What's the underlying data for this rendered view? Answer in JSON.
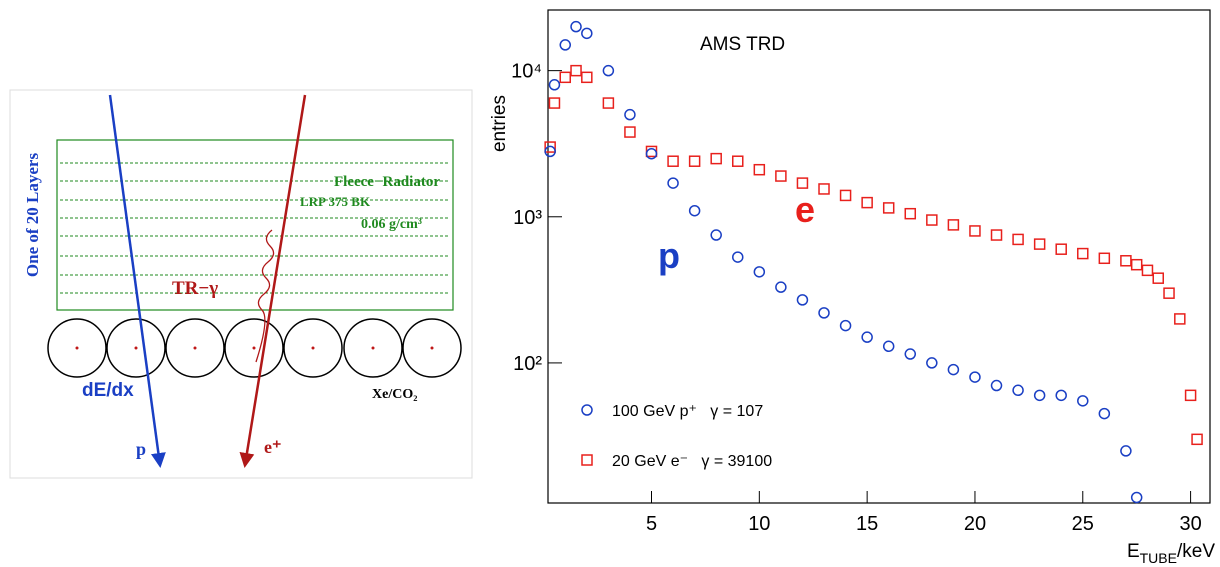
{
  "diagram": {
    "layers_label": "One of 20 Layers",
    "radiator": "Fleece−Radiator",
    "radiator_type": "LRP 375 BK",
    "density": "0.06 g/cm³",
    "tr_photon": "TR−γ",
    "energy_loss": "dE/dx",
    "gas": "Xe/CO₂",
    "proton": "p",
    "positron": "e⁺"
  },
  "chart_data": {
    "type": "scatter",
    "title": "AMS TRD",
    "y_label": "entries",
    "x_label": [
      "E",
      "TUBE",
      "/keV"
    ],
    "annotations": [
      {
        "text": "p",
        "color": "#1a3fc4"
      },
      {
        "text": "e",
        "color": "#e8201c"
      }
    ],
    "log_y": true,
    "xlim": [
      0.2,
      30.9
    ],
    "ylim": [
      11,
      26000
    ],
    "xticks": [
      5,
      10,
      15,
      20,
      25,
      30
    ],
    "yticks": [
      {
        "value": 100,
        "label": "10²"
      },
      {
        "value": 1000,
        "label": "10³"
      },
      {
        "value": 10000,
        "label": "10⁴"
      }
    ],
    "x": [
      0.3,
      0.5,
      1,
      1.5,
      2,
      3,
      4,
      5,
      6,
      7,
      8,
      9,
      10,
      11,
      12,
      13,
      14,
      15,
      16,
      17,
      18,
      19,
      20,
      21,
      22,
      23,
      24,
      25,
      26,
      27,
      27.5,
      28,
      28.5,
      29,
      29.5,
      30,
      30.3
    ],
    "series": [
      {
        "name": "100 GeV p⁺   γ = 107",
        "color": "#1a3fc4",
        "marker": "circle",
        "values": [
          2800,
          8000,
          15000,
          20000,
          18000,
          10000,
          5000,
          2700,
          1700,
          1100,
          750,
          530,
          420,
          330,
          270,
          220,
          180,
          150,
          130,
          115,
          100,
          90,
          80,
          70,
          65,
          60,
          60,
          55,
          45,
          25,
          12,
          null,
          null,
          null,
          null,
          null,
          null
        ]
      },
      {
        "name": "20 GeV e⁻   γ = 39100",
        "color": "#e8201c",
        "marker": "square",
        "values": [
          3000,
          6000,
          9000,
          10000,
          9000,
          6000,
          3800,
          2800,
          2400,
          2400,
          2500,
          2400,
          2100,
          1900,
          1700,
          1550,
          1400,
          1250,
          1150,
          1050,
          950,
          880,
          800,
          750,
          700,
          650,
          600,
          560,
          520,
          500,
          470,
          430,
          380,
          300,
          200,
          60,
          30
        ]
      }
    ]
  }
}
